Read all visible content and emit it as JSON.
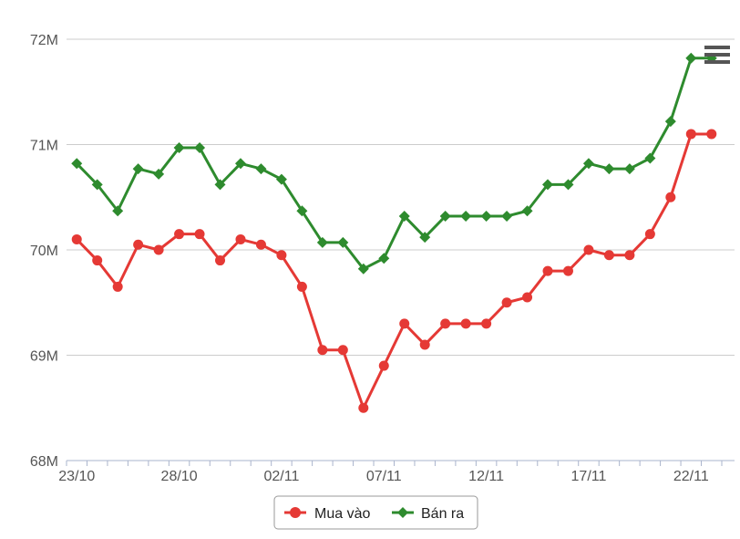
{
  "chart_data": {
    "type": "line",
    "title": "",
    "xlabel": "",
    "ylabel": "",
    "x": [
      "23/10",
      "24/10",
      "25/10",
      "26/10",
      "27/10",
      "28/10",
      "29/10",
      "30/10",
      "31/10",
      "01/11",
      "02/11",
      "03/11",
      "04/11",
      "05/11",
      "06/11",
      "07/11",
      "08/11",
      "09/11",
      "10/11",
      "11/11",
      "12/11",
      "13/11",
      "14/11",
      "15/11",
      "16/11",
      "17/11",
      "18/11",
      "19/11",
      "20/11",
      "21/11",
      "22/11",
      "23/11"
    ],
    "xticks": [
      "23/10",
      "28/10",
      "02/11",
      "07/11",
      "12/11",
      "17/11",
      "22/11"
    ],
    "yticks": [
      "68M",
      "69M",
      "70M",
      "71M",
      "72M"
    ],
    "ytick_values": [
      68,
      69,
      70,
      71,
      72
    ],
    "ylim": [
      68,
      72
    ],
    "y_unit": "M",
    "grid": true,
    "legend_position": "bottom",
    "series": [
      {
        "name": "Mua vào",
        "color": "#e53935",
        "marker": "circle",
        "values": [
          70.1,
          69.9,
          69.65,
          70.05,
          70.0,
          70.15,
          70.15,
          69.9,
          70.1,
          70.05,
          69.95,
          69.65,
          69.05,
          69.05,
          68.5,
          68.9,
          69.3,
          69.1,
          69.3,
          69.3,
          69.3,
          69.5,
          69.55,
          69.8,
          69.8,
          70.0,
          69.95,
          69.95,
          70.15,
          70.5,
          71.1,
          71.1
        ]
      },
      {
        "name": "Bán ra",
        "color": "#2e8b2e",
        "marker": "diamond",
        "values": [
          70.82,
          70.62,
          70.37,
          70.77,
          70.72,
          70.97,
          70.97,
          70.62,
          70.82,
          70.77,
          70.67,
          70.37,
          70.07,
          70.07,
          69.82,
          69.92,
          70.32,
          70.12,
          70.32,
          70.32,
          70.32,
          70.32,
          70.37,
          70.62,
          70.62,
          70.82,
          70.77,
          70.77,
          70.87,
          71.22,
          71.82,
          71.82
        ]
      }
    ]
  },
  "menu": {
    "icon": "hamburger-menu-icon"
  }
}
